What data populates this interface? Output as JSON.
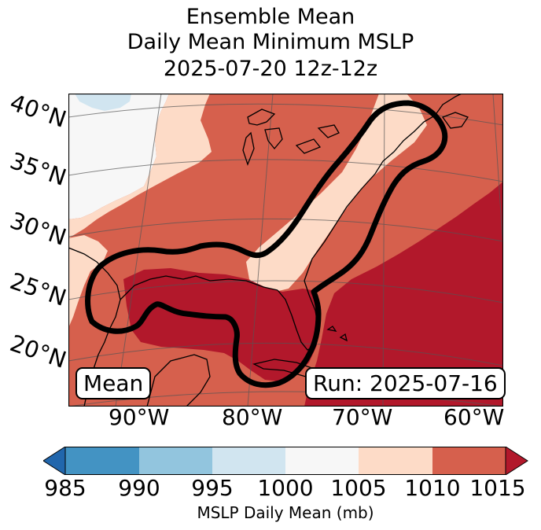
{
  "title": {
    "line1": "Ensemble Mean",
    "line2": "Daily Mean Minimum MSLP",
    "line3": "2025-07-20 12z-12z"
  },
  "latitude_labels": [
    "40°N",
    "35°N",
    "30°N",
    "25°N",
    "20°N"
  ],
  "longitude_labels": [
    "90°W",
    "80°W",
    "70°W",
    "60°W"
  ],
  "inset": {
    "mean_label": "Mean",
    "run_label": "Run: 2025-07-16"
  },
  "field": {
    "variable": "MSLP Daily Mean (mb)",
    "bands": [
      {
        "range": "985-990",
        "color": "#4393c3"
      },
      {
        "range": "990-995",
        "color": "#92c5de"
      },
      {
        "range": "995-1000",
        "color": "#d1e5f0"
      },
      {
        "range": "1000-1005",
        "color": "#f7f7f7"
      },
      {
        "range": "1005-1010",
        "color": "#fddbc7"
      },
      {
        "range": "1010-1015",
        "color": "#d6604d"
      },
      {
        "range": ">1015",
        "color": "#b2182b"
      }
    ],
    "under_color": "#2166ac",
    "over_color": "#b2182b"
  },
  "colorbar": {
    "ticks": [
      "985",
      "990",
      "995",
      "1000",
      "1005",
      "1010",
      "1015"
    ],
    "label": "MSLP Daily Mean (mb)"
  }
}
